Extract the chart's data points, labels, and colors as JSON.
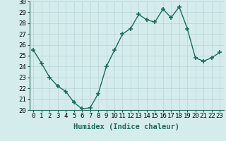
{
  "xlabel": "Humidex (Indice chaleur)",
  "ylabel": "",
  "x": [
    0,
    1,
    2,
    3,
    4,
    5,
    6,
    7,
    8,
    9,
    10,
    11,
    12,
    13,
    14,
    15,
    16,
    17,
    18,
    19,
    20,
    21,
    22,
    23
  ],
  "y": [
    25.5,
    24.3,
    23.0,
    22.2,
    21.7,
    20.7,
    20.1,
    20.2,
    21.5,
    24.0,
    25.5,
    27.0,
    27.5,
    28.8,
    28.3,
    28.1,
    29.3,
    28.5,
    29.5,
    27.5,
    24.8,
    24.5,
    24.8,
    25.3
  ],
  "line_color": "#1a6b5a",
  "marker": "+",
  "marker_size": 5,
  "marker_lw": 1.2,
  "bg_color": "#d5ecec",
  "grid_color": "#b8d4d4",
  "ylim": [
    20,
    30
  ],
  "yticks": [
    20,
    21,
    22,
    23,
    24,
    25,
    26,
    27,
    28,
    29,
    30
  ],
  "xticks": [
    0,
    1,
    2,
    3,
    4,
    5,
    6,
    7,
    8,
    9,
    10,
    11,
    12,
    13,
    14,
    15,
    16,
    17,
    18,
    19,
    20,
    21,
    22,
    23
  ],
  "xlabel_color": "#1a6b5a",
  "label_fontsize": 7.5,
  "tick_fontsize": 6.5,
  "line_width": 1.0,
  "spine_color": "#1a6b5a"
}
